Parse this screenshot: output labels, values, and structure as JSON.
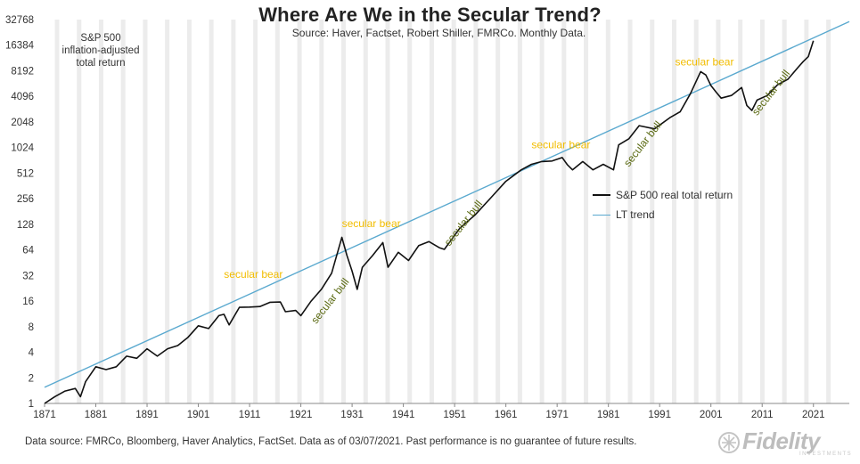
{
  "colors": {
    "series": "#111111",
    "trend": "#5aa9cf",
    "bear": "#f2bd00",
    "bull": "#5c6b14",
    "shade": "#ececec",
    "axis": "#888888"
  },
  "brand": {
    "name": "Fidelity",
    "subtitle": "INVESTMENTS",
    "icon": "fidelity-logo-icon"
  },
  "footnote": "Data source: FMRCo, Bloomberg, Haver Analytics, FactSet. Data as of 03/07/2021. Past performance is no guarantee of future results.",
  "chart_data": {
    "type": "line",
    "title": "Where Are We in the Secular Trend?",
    "subtitle": "Source: Haver, Factset, Robert Shiller, FMRCo. Monthly Data.",
    "corner_label": [
      "S&P 500",
      "inflation-adjusted",
      "total return"
    ],
    "y_scale": "log2",
    "ylim": [
      1,
      32768
    ],
    "xlim": [
      1871,
      2028
    ],
    "y_ticks": [
      1,
      2,
      4,
      8,
      16,
      32,
      64,
      128,
      256,
      512,
      1024,
      2048,
      4096,
      8192,
      16384,
      32768
    ],
    "x_ticks": [
      1871,
      1881,
      1891,
      1901,
      1911,
      1921,
      1931,
      1941,
      1951,
      1961,
      1971,
      1981,
      1991,
      2001,
      2011,
      2021
    ],
    "legend": [
      "S&P 500 real total return",
      "LT trend"
    ],
    "legend_position": "right",
    "series": [
      {
        "name": "S&P 500 real total return",
        "x": [
          1871,
          1873,
          1875,
          1877,
          1878,
          1879,
          1881,
          1883,
          1885,
          1887,
          1889,
          1891,
          1893,
          1895,
          1897,
          1899,
          1901,
          1903,
          1905,
          1906,
          1907,
          1909,
          1911,
          1913,
          1915,
          1917,
          1918,
          1920,
          1921,
          1923,
          1925,
          1927,
          1929,
          1930,
          1931,
          1932,
          1933,
          1935,
          1937,
          1938,
          1940,
          1942,
          1944,
          1946,
          1948,
          1949,
          1952,
          1955,
          1958,
          1961,
          1964,
          1966,
          1968,
          1970,
          1972,
          1973,
          1974,
          1976,
          1978,
          1980,
          1982,
          1983,
          1985,
          1987,
          1990,
          1993,
          1995,
          1997,
          1999,
          2000,
          2001,
          2002,
          2003,
          2005,
          2007,
          2008,
          2009,
          2010,
          2012,
          2014,
          2016,
          2018,
          2019,
          2020,
          2021
        ],
        "y": [
          1.0,
          1.2,
          1.4,
          1.5,
          1.2,
          1.8,
          2.7,
          2.5,
          2.7,
          3.6,
          3.4,
          4.4,
          3.6,
          4.4,
          4.8,
          6.0,
          8.2,
          7.6,
          10.8,
          11.2,
          8.4,
          13.5,
          13.6,
          13.8,
          15.5,
          15.6,
          12.0,
          12.4,
          10.8,
          16.0,
          22.0,
          34.0,
          90.0,
          55.0,
          36.0,
          22.0,
          40.0,
          55.0,
          78.0,
          40.0,
          60.0,
          48.0,
          72.0,
          80.0,
          68.0,
          65.0,
          115.0,
          165.0,
          260.0,
          410.0,
          560.0,
          650.0,
          700.0,
          710.0,
          780.0,
          640.0,
          560.0,
          700.0,
          560.0,
          650.0,
          560.0,
          1100.0,
          1300.0,
          1850.0,
          1700.0,
          2300.0,
          2700.0,
          4400.0,
          8000.0,
          7300.0,
          5500.0,
          4600.0,
          3900.0,
          4200.0,
          5200.0,
          3200.0,
          2800.0,
          3700.0,
          4200.0,
          5600.0,
          6500.0,
          9000.0,
          10500.0,
          12000.0,
          18500.0
        ]
      },
      {
        "name": "LT trend",
        "x": [
          1871,
          2028
        ],
        "y": [
          1.55,
          31000
        ]
      }
    ],
    "annotations": [
      {
        "text": "secular bear",
        "kind": "bear",
        "x": 1906,
        "y": 30
      },
      {
        "text": "secular bull",
        "kind": "bull",
        "x": 1924,
        "y": 8.5
      },
      {
        "text": "secular bear",
        "kind": "bear",
        "x": 1929,
        "y": 118
      },
      {
        "text": "secular bull",
        "kind": "bull",
        "x": 1950,
        "y": 70
      },
      {
        "text": "secular bear",
        "kind": "bear",
        "x": 1966,
        "y": 1000
      },
      {
        "text": "secular bull",
        "kind": "bull",
        "x": 1985,
        "y": 600
      },
      {
        "text": "secular bear",
        "kind": "bear",
        "x": 1994,
        "y": 9500
      },
      {
        "text": "secular bull",
        "kind": "bull",
        "x": 2010,
        "y": 2400
      }
    ]
  }
}
